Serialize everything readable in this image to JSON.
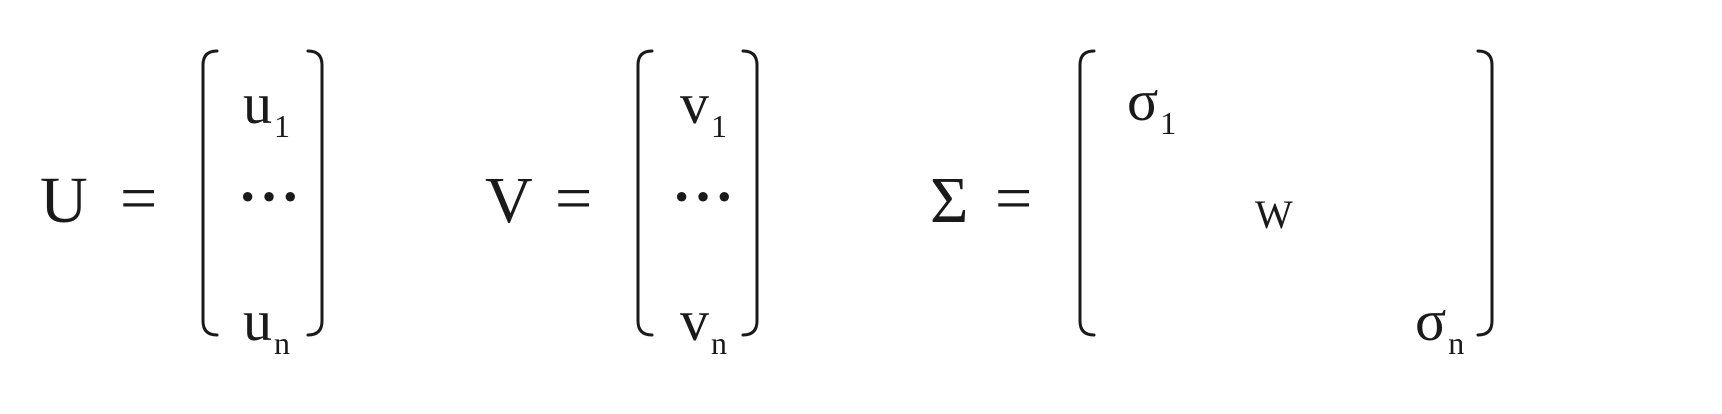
{
  "equations": [
    {
      "lhs": "U",
      "equals": "=",
      "entries": [
        {
          "base": "u",
          "sub": "1"
        },
        {
          "text": "···"
        },
        {
          "base": "u",
          "sub": "n"
        }
      ]
    },
    {
      "lhs": "V",
      "equals": "=",
      "entries": [
        {
          "base": "v",
          "sub": "1"
        },
        {
          "text": "···"
        },
        {
          "base": "v",
          "sub": "n"
        }
      ]
    },
    {
      "lhs": "Σ",
      "equals": "=",
      "entries": [
        {
          "base": "σ",
          "sub": "1"
        },
        {
          "text": "W"
        },
        {
          "base": "σ",
          "sub": "n"
        }
      ]
    }
  ]
}
